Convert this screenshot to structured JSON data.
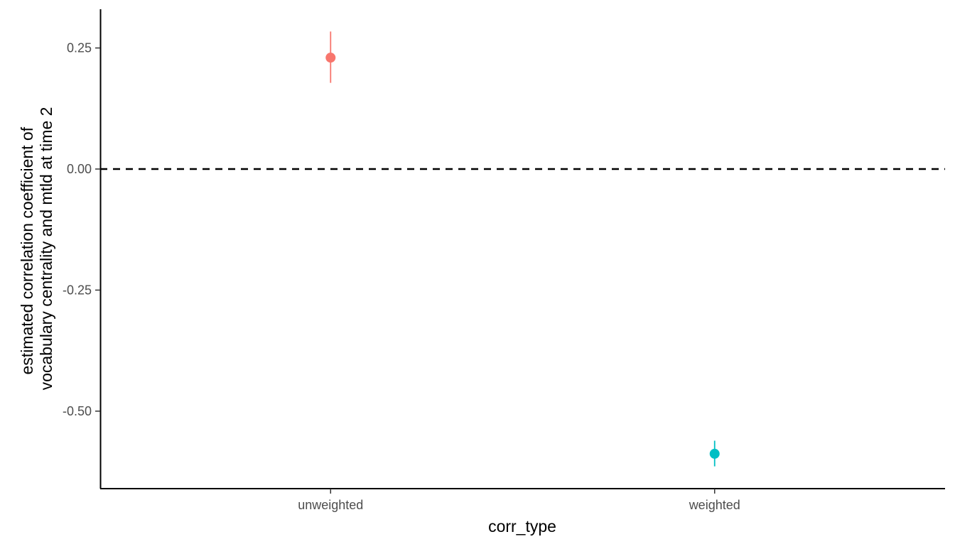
{
  "chart_data": {
    "type": "scatter",
    "subtype": "pointrange",
    "title": "",
    "xlabel": "corr_type",
    "ylabel_lines": [
      "estimated correlation coefficient of",
      "vocabulary centrality and mtld at time 2"
    ],
    "categories": [
      "unweighted",
      "weighted"
    ],
    "points": [
      {
        "category": "unweighted",
        "estimate": 0.23,
        "lower": 0.178,
        "upper": 0.284,
        "color": "#F8766D"
      },
      {
        "category": "weighted",
        "estimate": -0.588,
        "lower": -0.614,
        "upper": -0.561,
        "color": "#00BFC4"
      }
    ],
    "yticks": [
      0.25,
      0.0,
      -0.25,
      -0.5
    ],
    "ytick_labels": [
      "0.25",
      "0.00",
      "-0.25",
      "-0.50"
    ],
    "ylim": [
      -0.66,
      0.33
    ],
    "reference_line": {
      "y": 0.0,
      "style": "dashed",
      "color": "#000000"
    },
    "grid": false,
    "legend": "none"
  }
}
